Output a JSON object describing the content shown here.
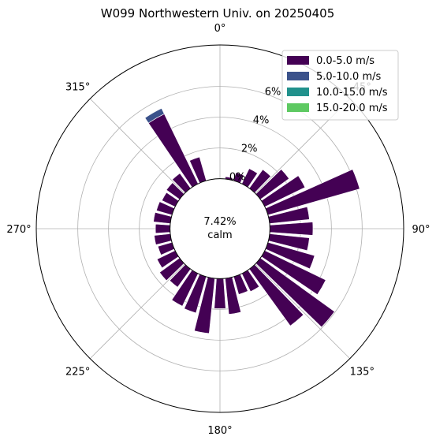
{
  "chart_data": {
    "type": "windrose",
    "title": "W099 Northwestern Univ. on 20250405",
    "calm_value": "7.42%",
    "calm_label": "calm",
    "direction_labels": [
      {
        "angle": 0,
        "text": "0°"
      },
      {
        "angle": 45,
        "text": "45°"
      },
      {
        "angle": 90,
        "text": "90°"
      },
      {
        "angle": 135,
        "text": "135°"
      },
      {
        "angle": 180,
        "text": "180°"
      },
      {
        "angle": 225,
        "text": "225°"
      },
      {
        "angle": 270,
        "text": "270°"
      },
      {
        "angle": 315,
        "text": "315°"
      }
    ],
    "r_ticks": [
      0,
      2,
      4,
      6
    ],
    "r_tick_labels": [
      "0%",
      "2%",
      "4%",
      "6%"
    ],
    "r_max": 8.7,
    "r_origin": 3.25,
    "sector_width_deg": 10,
    "bin_labels": [
      "0.0-5.0 m/s",
      "5.0-10.0 m/s",
      "10.0-15.0 m/s",
      "15.0-20.0 m/s"
    ],
    "bin_colors": [
      "#440154",
      "#3b528b",
      "#21918c",
      "#5ec962"
    ],
    "legend_position": "upper-right",
    "directions": [
      0,
      10,
      20,
      30,
      40,
      50,
      60,
      70,
      80,
      90,
      100,
      110,
      120,
      130,
      140,
      150,
      160,
      170,
      180,
      190,
      200,
      210,
      220,
      230,
      240,
      250,
      260,
      270,
      280,
      290,
      300,
      310,
      320,
      330,
      340,
      350
    ],
    "series": [
      {
        "name": "0.0-5.0 m/s",
        "values": [
          0.0,
          0.15,
          0.55,
          1.1,
          1.5,
          2.3,
          2.9,
          6.2,
          2.6,
          2.8,
          2.6,
          3.15,
          4.4,
          5.95,
          4.55,
          1.3,
          1.2,
          2.35,
          1.95,
          3.6,
          2.45,
          2.35,
          1.45,
          1.6,
          1.3,
          0.95,
          1.05,
          0.95,
          1.1,
          1.05,
          0.95,
          1.05,
          1.2,
          5.05,
          1.6,
          0.0
        ]
      },
      {
        "name": "5.0-10.0 m/s",
        "values": [
          0,
          0,
          0,
          0,
          0,
          0,
          0,
          0,
          0,
          0,
          0,
          0,
          0,
          0,
          0,
          0,
          0,
          0,
          0,
          0,
          0,
          0,
          0,
          0,
          0,
          0,
          0,
          0,
          0,
          0,
          0,
          0,
          0,
          0.4,
          0,
          0
        ]
      },
      {
        "name": "10.0-15.0 m/s",
        "values": [
          0,
          0,
          0,
          0,
          0,
          0,
          0,
          0,
          0,
          0,
          0,
          0,
          0,
          0,
          0,
          0,
          0,
          0,
          0,
          0,
          0,
          0,
          0,
          0,
          0,
          0,
          0,
          0,
          0,
          0,
          0,
          0,
          0,
          0,
          0,
          0
        ]
      },
      {
        "name": "15.0-20.0 m/s",
        "values": [
          0,
          0,
          0,
          0,
          0,
          0,
          0,
          0,
          0,
          0,
          0,
          0,
          0,
          0,
          0,
          0,
          0,
          0,
          0,
          0,
          0,
          0,
          0,
          0,
          0,
          0,
          0,
          0,
          0,
          0,
          0,
          0,
          0,
          0,
          0,
          0
        ]
      }
    ]
  }
}
